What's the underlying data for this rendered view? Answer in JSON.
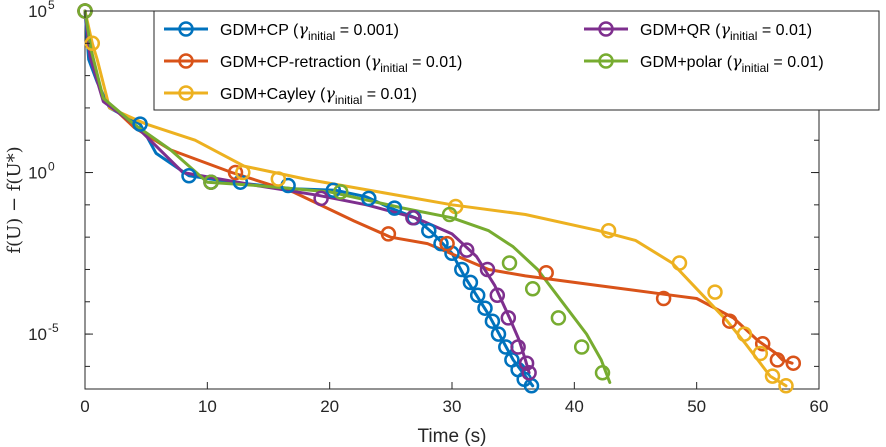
{
  "chart_data": {
    "type": "line",
    "title": "",
    "xlabel": "Time (s)",
    "ylabel": "f(U) − f(U*)",
    "yscale": "log",
    "xlim": [
      0,
      60
    ],
    "ylim_log10": [
      -6.7,
      5
    ],
    "xticks": [
      "0",
      "10",
      "20",
      "30",
      "40",
      "50",
      "60"
    ],
    "yticks": [
      {
        "base": "10",
        "exp": "5",
        "log": 5
      },
      {
        "base": "10",
        "exp": "0",
        "log": 0
      },
      {
        "base": "10",
        "exp": "-5",
        "log": -5
      }
    ],
    "grid": false,
    "legend_placement": "top-right",
    "series": [
      {
        "name": "GDM+CP",
        "legend_label": "GDM+CP (",
        "gamma": "γ",
        "gamma_sub": "initial",
        "gamma_value": " = 0.001)",
        "color": "#0072BD",
        "line": [
          [
            0,
            5
          ],
          [
            0.3,
            3.5
          ],
          [
            1,
            2.8
          ],
          [
            2,
            2.0
          ],
          [
            3,
            1.8
          ],
          [
            4.5,
            1.5
          ],
          [
            5.8,
            0.6
          ],
          [
            8.5,
            -0.1
          ],
          [
            12,
            -0.3
          ],
          [
            17,
            -0.5
          ],
          [
            20.5,
            -0.55
          ],
          [
            23,
            -0.75
          ],
          [
            25,
            -1.1
          ],
          [
            27,
            -1.4
          ],
          [
            28.5,
            -1.9
          ],
          [
            30,
            -2.5
          ],
          [
            31,
            -3.2
          ],
          [
            32,
            -3.8
          ],
          [
            33,
            -4.4
          ],
          [
            34,
            -5.1
          ],
          [
            35,
            -5.8
          ],
          [
            36,
            -6.3
          ],
          [
            36.6,
            -6.6
          ]
        ],
        "markers": [
          [
            0,
            5
          ],
          [
            4.5,
            1.5
          ],
          [
            8.5,
            -0.1
          ],
          [
            10.3,
            -0.3
          ],
          [
            12.7,
            -0.3
          ],
          [
            16.6,
            -0.4
          ],
          [
            20.3,
            -0.55
          ],
          [
            23.2,
            -0.8
          ],
          [
            25.3,
            -1.1
          ],
          [
            26.9,
            -1.4
          ],
          [
            28.1,
            -1.8
          ],
          [
            29.1,
            -2.2
          ],
          [
            30,
            -2.5
          ],
          [
            30.8,
            -3.0
          ],
          [
            31.5,
            -3.4
          ],
          [
            32.1,
            -3.8
          ],
          [
            32.7,
            -4.2
          ],
          [
            33.3,
            -4.6
          ],
          [
            33.8,
            -5.0
          ],
          [
            34.4,
            -5.4
          ],
          [
            34.9,
            -5.8
          ],
          [
            35.4,
            -6.1
          ],
          [
            35.9,
            -6.4
          ],
          [
            36.5,
            -6.6
          ]
        ]
      },
      {
        "name": "GDM+CP-retraction",
        "legend_label": "GDM+CP-retraction (",
        "gamma": "γ",
        "gamma_sub": "initial",
        "gamma_value": " = 0.01)",
        "color": "#D95319",
        "line": [
          [
            0,
            5
          ],
          [
            0.5,
            3.6
          ],
          [
            1.5,
            2.3
          ],
          [
            4,
            1.4
          ],
          [
            7,
            0.7
          ],
          [
            12,
            0.0
          ],
          [
            17,
            -0.6
          ],
          [
            22,
            -1.5
          ],
          [
            25,
            -2.0
          ],
          [
            28,
            -2.2
          ],
          [
            33,
            -3.0
          ],
          [
            36,
            -3.2
          ],
          [
            42,
            -3.5
          ],
          [
            48,
            -3.8
          ],
          [
            50,
            -3.9
          ],
          [
            53,
            -4.5
          ],
          [
            55,
            -5.2
          ],
          [
            56.5,
            -5.6
          ],
          [
            57,
            -5.8
          ],
          [
            57.8,
            -5.9
          ]
        ],
        "markers": [
          [
            0,
            5
          ],
          [
            12.3,
            0.0
          ],
          [
            24.8,
            -1.9
          ],
          [
            29.6,
            -2.2
          ],
          [
            37.7,
            -3.1
          ],
          [
            47.3,
            -3.9
          ],
          [
            52.7,
            -4.6
          ],
          [
            55.4,
            -5.3
          ],
          [
            56.6,
            -5.8
          ],
          [
            57.9,
            -5.9
          ]
        ]
      },
      {
        "name": "GDM+Cayley",
        "legend_label": "GDM+Cayley (",
        "gamma": "γ",
        "gamma_sub": "initial",
        "gamma_value": " = 0.01)",
        "color": "#EDB120",
        "line": [
          [
            0,
            5
          ],
          [
            0.6,
            4.0
          ],
          [
            1,
            3.5
          ],
          [
            2,
            2.0
          ],
          [
            5,
            1.5
          ],
          [
            9,
            1.0
          ],
          [
            13,
            0.2
          ],
          [
            18,
            -0.2
          ],
          [
            24,
            -0.6
          ],
          [
            30,
            -1.0
          ],
          [
            36,
            -1.3
          ],
          [
            42,
            -1.8
          ],
          [
            45,
            -2.1
          ],
          [
            48,
            -2.8
          ],
          [
            50.5,
            -3.8
          ],
          [
            52.5,
            -4.6
          ],
          [
            54,
            -5.3
          ],
          [
            55,
            -5.8
          ],
          [
            56,
            -6.3
          ],
          [
            57.3,
            -6.6
          ]
        ],
        "markers": [
          [
            0,
            5
          ],
          [
            0.6,
            4.0
          ],
          [
            12.9,
            0.0
          ],
          [
            15.8,
            -0.2
          ],
          [
            30.3,
            -1.05
          ],
          [
            42.8,
            -1.8
          ],
          [
            48.6,
            -2.8
          ],
          [
            51.5,
            -3.7
          ],
          [
            53.9,
            -5.0
          ],
          [
            55.2,
            -5.6
          ],
          [
            56.2,
            -6.3
          ],
          [
            57.3,
            -6.6
          ]
        ]
      },
      {
        "name": "GDM+QR",
        "legend_label": "GDM+QR (",
        "gamma": "γ",
        "gamma_sub": "initial",
        "gamma_value": " = 0.01)",
        "color": "#7E2F8E",
        "line": [
          [
            0,
            5
          ],
          [
            0.4,
            3.6
          ],
          [
            1.5,
            2.2
          ],
          [
            4,
            1.5
          ],
          [
            8,
            0.0
          ],
          [
            14,
            -0.4
          ],
          [
            19,
            -0.7
          ],
          [
            23,
            -1.0
          ],
          [
            27,
            -1.4
          ],
          [
            30,
            -1.9
          ],
          [
            32,
            -2.6
          ],
          [
            33.5,
            -3.5
          ],
          [
            34.7,
            -4.5
          ],
          [
            35.5,
            -5.2
          ],
          [
            36,
            -5.8
          ],
          [
            36.3,
            -6.2
          ]
        ],
        "markers": [
          [
            0,
            5
          ],
          [
            10.3,
            -0.3
          ],
          [
            19.3,
            -0.8
          ],
          [
            26.8,
            -1.4
          ],
          [
            31.2,
            -2.4
          ],
          [
            32.9,
            -3.0
          ],
          [
            33.7,
            -3.8
          ],
          [
            34.6,
            -4.5
          ],
          [
            35.4,
            -5.4
          ],
          [
            36.1,
            -5.9
          ],
          [
            36.3,
            -6.2
          ]
        ]
      },
      {
        "name": "GDM+polar",
        "legend_label": "GDM+polar (",
        "gamma": "γ",
        "gamma_sub": "initial",
        "gamma_value": " = 0.01)",
        "color": "#77AC30",
        "line": [
          [
            0,
            5
          ],
          [
            0.5,
            3.8
          ],
          [
            1.5,
            2.3
          ],
          [
            4,
            1.5
          ],
          [
            7,
            0.7
          ],
          [
            10,
            -0.3
          ],
          [
            14,
            -0.4
          ],
          [
            20,
            -0.6
          ],
          [
            26,
            -1.1
          ],
          [
            30,
            -1.4
          ],
          [
            33,
            -1.8
          ],
          [
            35,
            -2.3
          ],
          [
            37,
            -3.0
          ],
          [
            39,
            -4.0
          ],
          [
            41,
            -5.0
          ],
          [
            42.2,
            -5.8
          ],
          [
            42.9,
            -6.5
          ]
        ],
        "markers": [
          [
            0,
            5
          ],
          [
            10.3,
            -0.3
          ],
          [
            20.9,
            -0.6
          ],
          [
            29.8,
            -1.3
          ],
          [
            34.7,
            -2.8
          ],
          [
            36.6,
            -3.6
          ],
          [
            38.7,
            -4.5
          ],
          [
            40.6,
            -5.4
          ],
          [
            42.3,
            -6.2
          ]
        ]
      }
    ]
  }
}
